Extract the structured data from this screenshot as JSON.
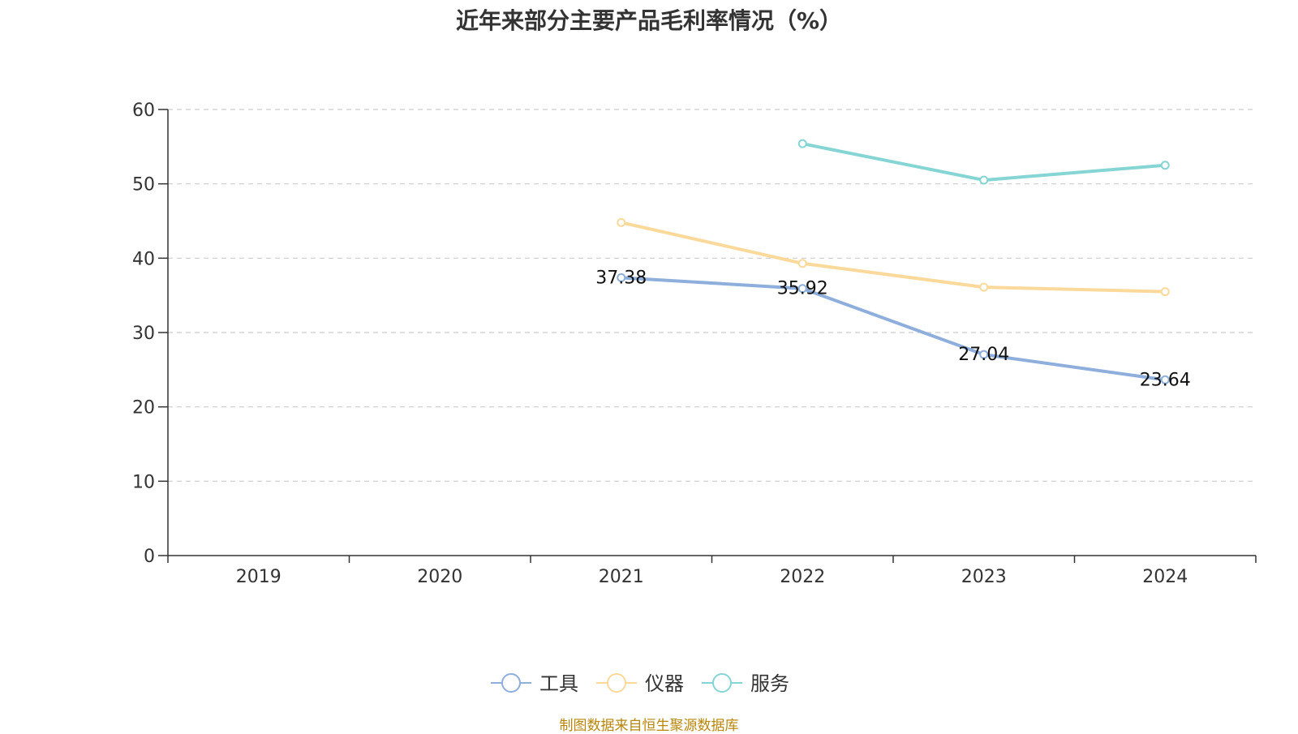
{
  "chart_data": {
    "type": "line",
    "title": "近年来部分主要产品毛利率情况（%）",
    "categories": [
      "2019",
      "2020",
      "2021",
      "2022",
      "2023",
      "2024"
    ],
    "ylim": [
      0,
      60
    ],
    "yticks": [
      0,
      10,
      20,
      30,
      40,
      50,
      60
    ],
    "grid": true,
    "legend_position": "bottom-center",
    "series": [
      {
        "name": "工具",
        "color": "#8eaedb",
        "values": [
          null,
          null,
          37.38,
          35.92,
          27.04,
          23.64
        ],
        "show_labels": true
      },
      {
        "name": "仪器",
        "color": "#fad99a",
        "values": [
          null,
          null,
          44.8,
          39.3,
          36.1,
          35.5
        ],
        "show_labels": false
      },
      {
        "name": "服务",
        "color": "#84d5d4",
        "values": [
          null,
          null,
          null,
          55.4,
          50.5,
          52.5
        ],
        "show_labels": false
      }
    ]
  },
  "source_note": "制图数据来自恒生聚源数据库"
}
